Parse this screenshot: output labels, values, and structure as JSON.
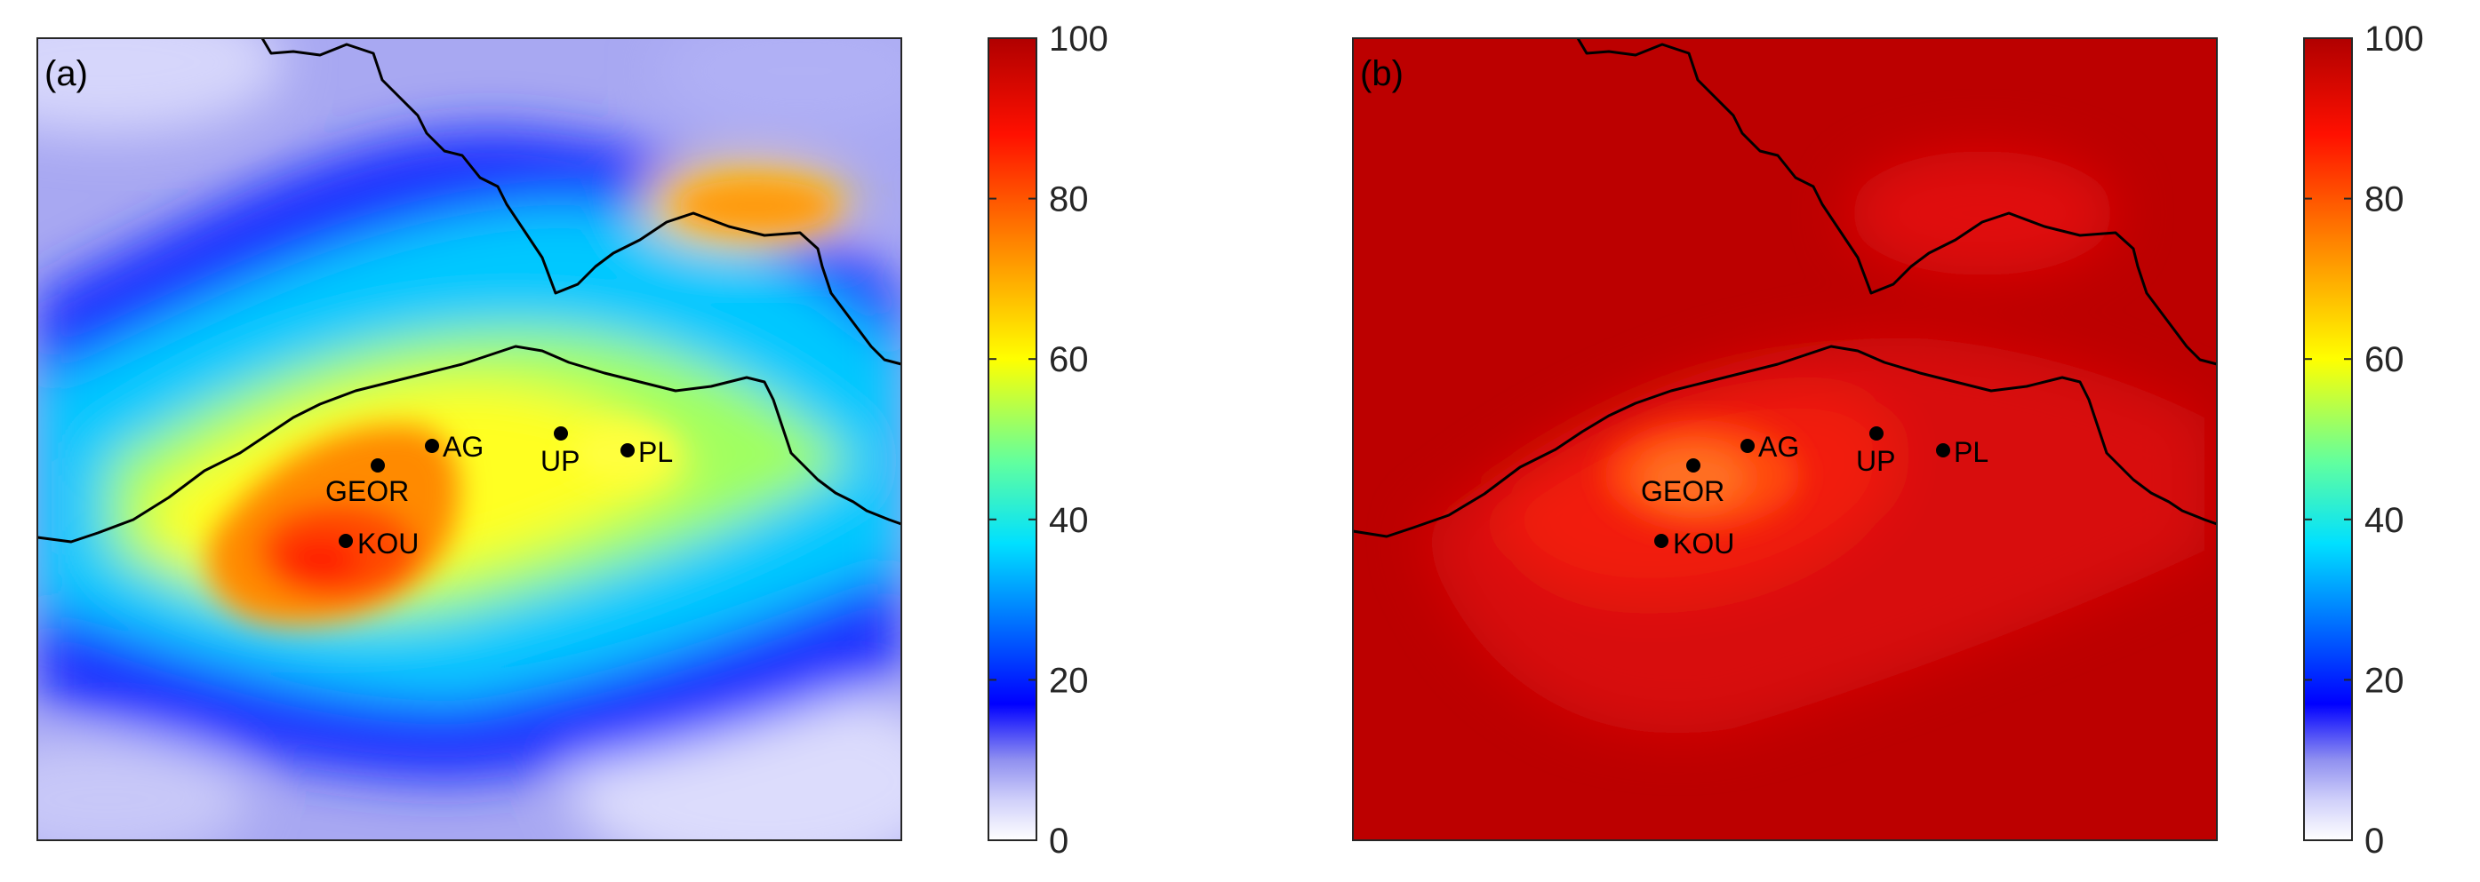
{
  "panels": [
    {
      "id": "a",
      "label": "(a)",
      "stations": [
        {
          "code": "AG"
        },
        {
          "code": "GEOR"
        },
        {
          "code": "UP"
        },
        {
          "code": "PL"
        },
        {
          "code": "KOU"
        }
      ]
    },
    {
      "id": "b",
      "label": "(b)",
      "stations": [
        {
          "code": "AG"
        },
        {
          "code": "GEOR"
        },
        {
          "code": "UP"
        },
        {
          "code": "PL"
        },
        {
          "code": "KOU"
        }
      ]
    }
  ],
  "colorbar": {
    "min": 0,
    "max": 100,
    "ticks": [
      "0",
      "20",
      "40",
      "60",
      "80",
      "100"
    ],
    "colormap": "jet-like with white-lavender low end",
    "stops": [
      "#ffffff",
      "#c8c8f8",
      "#8c8cf0",
      "#0000ff",
      "#0080ff",
      "#00ffff",
      "#80ff80",
      "#ffff00",
      "#ff8000",
      "#ff0000",
      "#a00000"
    ]
  }
}
